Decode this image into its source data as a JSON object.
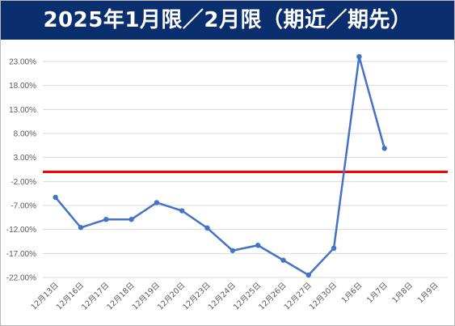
{
  "header": {
    "title": "2025年1月限／2月限（期近／期先）"
  },
  "chart_data": {
    "type": "line",
    "title": "2025年1月限／2月限（期近／期先）",
    "xlabel": "",
    "ylabel": "",
    "categories": [
      "12月13日",
      "12月16日",
      "12月17日",
      "12月18日",
      "12月19日",
      "12月20日",
      "12月23日",
      "12月24日",
      "12月25日",
      "12月26日",
      "12月27日",
      "12月30日",
      "1月6日",
      "1月7日",
      "1月8日",
      "1月9日"
    ],
    "y_ticks": [
      "23.00%",
      "18.00%",
      "13.00%",
      "8.00%",
      "3.00%",
      "-2.00%",
      "-7.00%",
      "-12.00%",
      "-17.00%",
      "-22.00%"
    ],
    "ylim": [
      -22,
      23
    ],
    "series": [
      {
        "values": [
          -5.3,
          -11.6,
          -9.9,
          -9.9,
          -6.4,
          -8.1,
          -11.7,
          -16.4,
          -15.3,
          -18.4,
          -21.5,
          -15.9,
          24.0,
          4.9,
          null,
          null
        ]
      }
    ],
    "reference_line": {
      "value": 0
    },
    "grid": true,
    "legend": "none",
    "colors": {
      "series": "#4472c4",
      "reference": "#ff0000",
      "grid": "#d9d9d9",
      "header": "#0b2e6f"
    }
  }
}
